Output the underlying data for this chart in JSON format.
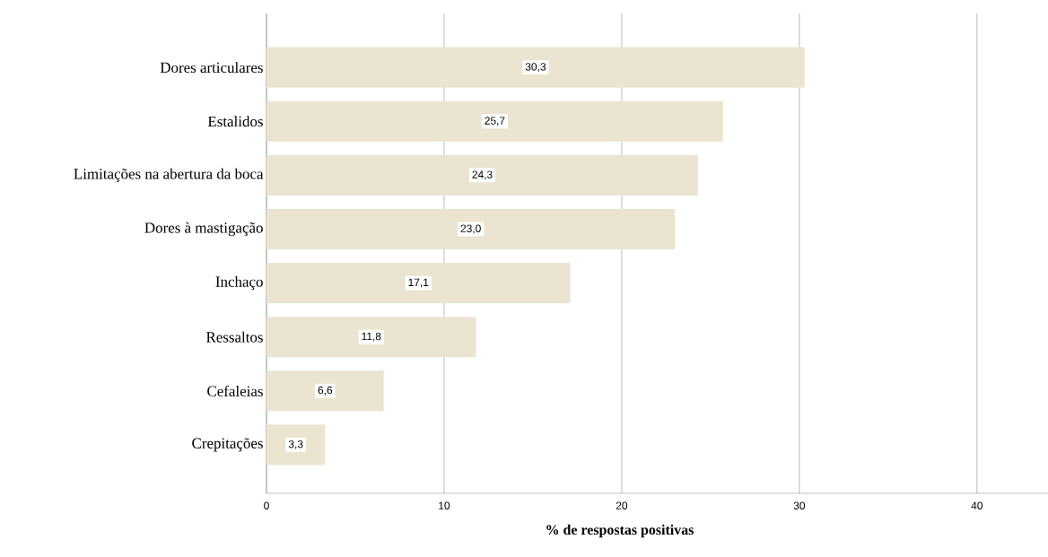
{
  "chart_data": {
    "type": "bar",
    "orientation": "horizontal",
    "xlabel": "% de respostas positivas",
    "categories": [
      "Dores articulares",
      "Estalidos",
      "Limitações na abertura da boca",
      "Dores à mastigação",
      "Inchaço",
      "Ressaltos",
      "Cefaleias",
      "Crepitações"
    ],
    "values": [
      30.3,
      25.7,
      24.3,
      23.0,
      17.1,
      11.8,
      6.6,
      3.3
    ],
    "value_labels": [
      "30,3",
      "25,7",
      "24,3",
      "23,0",
      "17,1",
      "11,8",
      "6,6",
      "3,3"
    ],
    "color": "#ebe4d1",
    "xlim": [
      0,
      44
    ],
    "xticks": [
      0,
      10,
      20,
      30,
      40
    ],
    "grid": "x"
  }
}
